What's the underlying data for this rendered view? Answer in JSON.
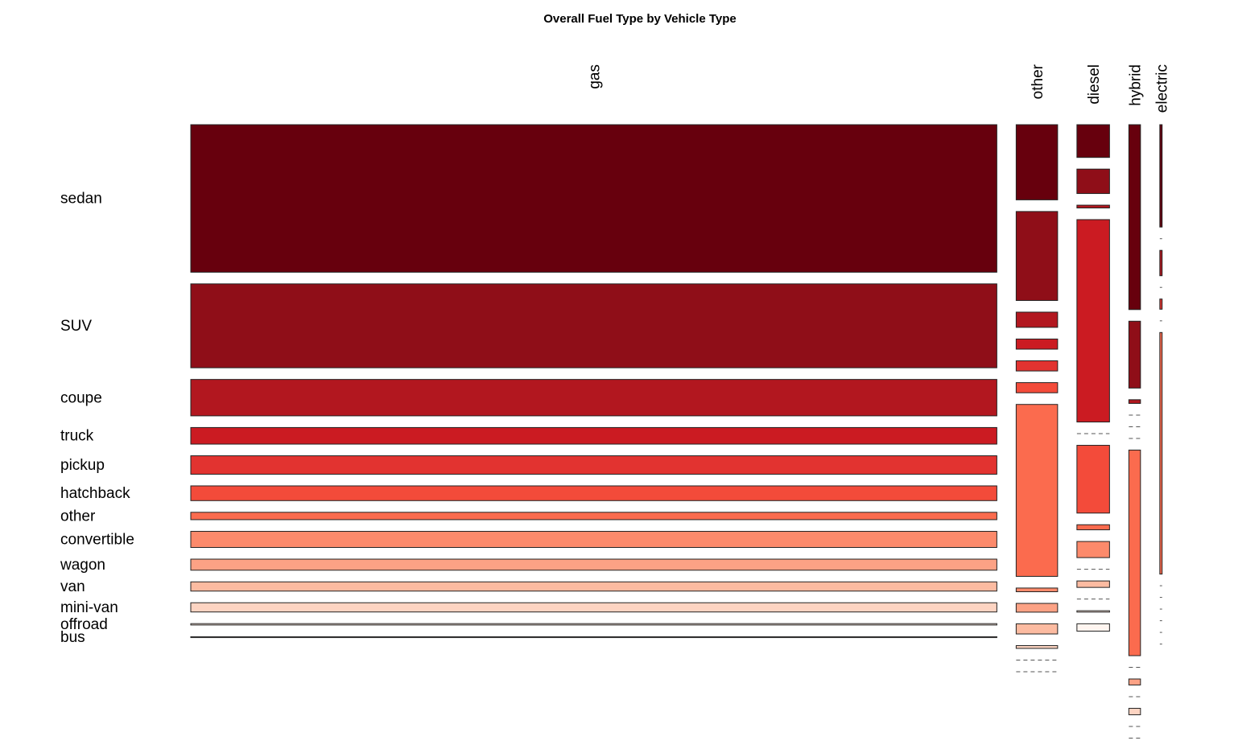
{
  "chart_data": {
    "type": "mosaic",
    "title": "Overall Fuel Type by Vehicle Type",
    "columns": [
      "gas",
      "other",
      "diesel",
      "hybrid",
      "electric"
    ],
    "column_shares": [
      0.8655,
      0.0445,
      0.035,
      0.0125,
      0.0025
    ],
    "rows": [
      "sedan",
      "SUV",
      "coupe",
      "truck",
      "pickup",
      "hatchback",
      "other",
      "convertible",
      "wagon",
      "van",
      "mini-van",
      "offroad",
      "bus"
    ],
    "colors": [
      "#67000d",
      "#8f0e18",
      "#b2171f",
      "#cb1b22",
      "#e23330",
      "#f34b3a",
      "#fb6b4e",
      "#fc8a6b",
      "#fca285",
      "#fcbba1",
      "#fdd4c2",
      "#fee8de",
      "#fff5f0"
    ],
    "values": [
      [
        0.32,
        0.182,
        0.079,
        0.036,
        0.04,
        0.032,
        0.016,
        0.035,
        0.024,
        0.02,
        0.02,
        0.003,
        0.002
      ],
      [
        0.163,
        0.193,
        0.033,
        0.022,
        0.022,
        0.022,
        0.373,
        0.008,
        0.019,
        0.022,
        0.006,
        0.0,
        0.0
      ],
      [
        0.071,
        0.053,
        0.006,
        0.439,
        0.0,
        0.147,
        0.011,
        0.035,
        0.0,
        0.014,
        0.0,
        0.003,
        0.016
      ],
      [
        0.401,
        0.145,
        0.008,
        0.0,
        0.0,
        0.0,
        0.446,
        0.0,
        0.013,
        0.0,
        0.014,
        0.0,
        0.0
      ],
      [
        0.222,
        0.0,
        0.055,
        0.0,
        0.022,
        0.0,
        0.524,
        0.0,
        0.0,
        0.0,
        0.0,
        0.0,
        0.0
      ]
    ]
  }
}
